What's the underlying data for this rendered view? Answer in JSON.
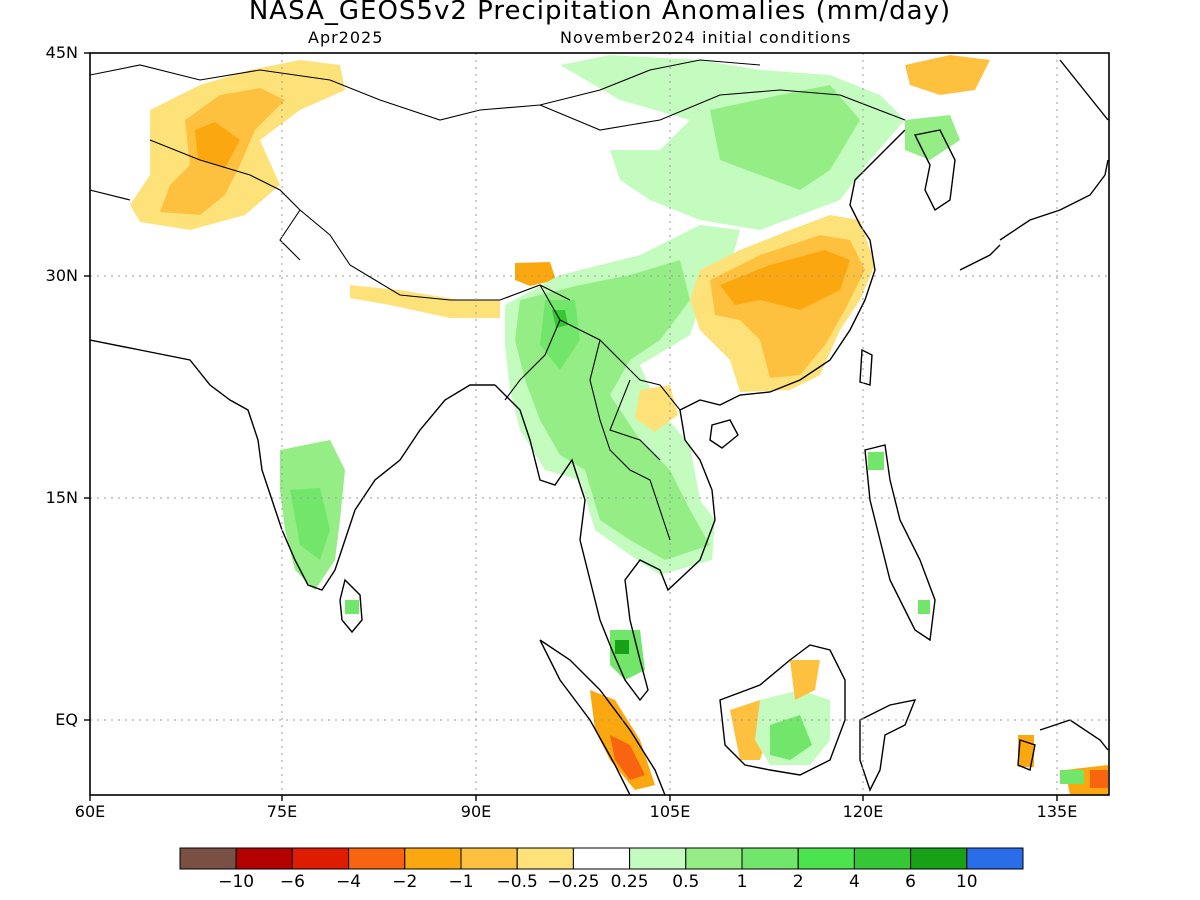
{
  "header": {
    "title": "NASA_GEOS5v2 Precipitation Anomalies (mm/day)",
    "valid_month": "Apr2025",
    "initial_conditions": "November2024 initial conditions"
  },
  "map": {
    "region": "South and East Asia",
    "lat_ticks": [
      "45N",
      "30N",
      "15N",
      "EQ"
    ],
    "lon_ticks": [
      "60E",
      "75E",
      "90E",
      "105E",
      "120E",
      "135E"
    ],
    "grid": "dotted",
    "coastlines": true,
    "anomaly_patterns": [
      {
        "area": "Myanmar / Indochina",
        "sign": "wet",
        "level": "1 to 2"
      },
      {
        "area": "Southern India",
        "sign": "wet",
        "level": "1 to 2"
      },
      {
        "area": "Southeast China",
        "sign": "dry",
        "level": "-2 to -1"
      },
      {
        "area": "Afghanistan / Tajikistan",
        "sign": "dry",
        "level": "-2 to -0.5"
      },
      {
        "area": "North China",
        "sign": "wet",
        "level": "0.25 to 1"
      },
      {
        "area": "Borneo",
        "sign": "wet",
        "level": "1 to 2"
      },
      {
        "area": "Sumatra",
        "sign": "dry",
        "level": "-4 to -1"
      }
    ]
  },
  "colorbar": {
    "colors": [
      "#7a5045",
      "#b50000",
      "#dd1c00",
      "#f86410",
      "#fba710",
      "#fdc13f",
      "#fde27a",
      "#ffffff",
      "#c4fbbf",
      "#94ee85",
      "#71e66b",
      "#4de34f",
      "#36c736",
      "#17a117",
      "#2a6de8"
    ],
    "labels": [
      "−10",
      "−6",
      "−4",
      "−2",
      "−1",
      "−0.5",
      "−0.25",
      "0.25",
      "0.5",
      "1",
      "2",
      "4",
      "6",
      "10"
    ]
  }
}
